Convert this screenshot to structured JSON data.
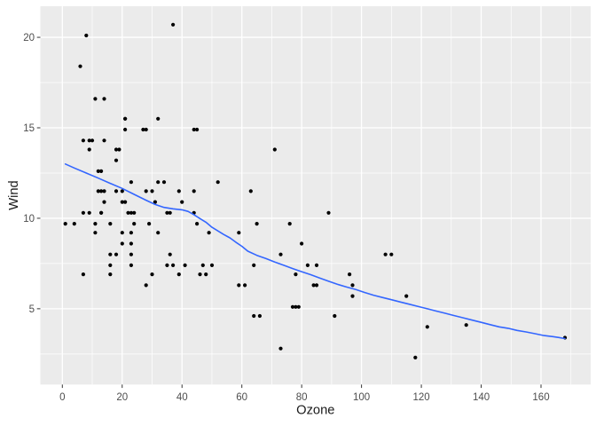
{
  "chart_data": {
    "type": "scatter",
    "title": "",
    "xlabel": "Ozone",
    "ylabel": "Wind",
    "x_ticks": [
      0,
      20,
      40,
      60,
      80,
      100,
      120,
      140,
      160
    ],
    "x_minor_ticks": [
      10,
      30,
      50,
      70,
      90,
      110,
      130,
      150,
      170
    ],
    "y_ticks": [
      5,
      10,
      15,
      20
    ],
    "y_minor_ticks": [
      2.5,
      7.5,
      12.5,
      17.5
    ],
    "xlim": [
      -7.35,
      176.6
    ],
    "ylim": [
      0.81,
      21.72
    ],
    "grid": "major+minor",
    "legend": "none",
    "points": [
      [
        41,
        7.4
      ],
      [
        36,
        8
      ],
      [
        12,
        12.6
      ],
      [
        18,
        11.5
      ],
      [
        28,
        14.9
      ],
      [
        23,
        8.6
      ],
      [
        19,
        13.8
      ],
      [
        8,
        20.1
      ],
      [
        7,
        6.9
      ],
      [
        16,
        9.7
      ],
      [
        11,
        9.2
      ],
      [
        14,
        10.9
      ],
      [
        18,
        13.2
      ],
      [
        14,
        11.5
      ],
      [
        34,
        12
      ],
      [
        6,
        18.4
      ],
      [
        30,
        11.5
      ],
      [
        11,
        9.7
      ],
      [
        1,
        9.7
      ],
      [
        11,
        16.6
      ],
      [
        4,
        9.7
      ],
      [
        32,
        12
      ],
      [
        23,
        12
      ],
      [
        45,
        14.9
      ],
      [
        115,
        5.7
      ],
      [
        37,
        7.4
      ],
      [
        29,
        9.7
      ],
      [
        71,
        13.8
      ],
      [
        39,
        11.5
      ],
      [
        23,
        8
      ],
      [
        21,
        14.9
      ],
      [
        37,
        20.7
      ],
      [
        20,
        9.2
      ],
      [
        12,
        11.5
      ],
      [
        13,
        10.3
      ],
      [
        135,
        4.1
      ],
      [
        49,
        9.2
      ],
      [
        32,
        9.2
      ],
      [
        64,
        4.6
      ],
      [
        40,
        10.9
      ],
      [
        77,
        5.1
      ],
      [
        97,
        6.3
      ],
      [
        97,
        5.7
      ],
      [
        85,
        7.4
      ],
      [
        10,
        14.3
      ],
      [
        27,
        14.9
      ],
      [
        7,
        14.3
      ],
      [
        48,
        6.9
      ],
      [
        35,
        10.3
      ],
      [
        61,
        6.3
      ],
      [
        79,
        5.1
      ],
      [
        63,
        11.5
      ],
      [
        16,
        6.9
      ],
      [
        80,
        8.6
      ],
      [
        108,
        8
      ],
      [
        20,
        8.6
      ],
      [
        52,
        12
      ],
      [
        82,
        7.4
      ],
      [
        50,
        7.4
      ],
      [
        64,
        7.4
      ],
      [
        59,
        9.2
      ],
      [
        39,
        6.9
      ],
      [
        9,
        13.8
      ],
      [
        16,
        7.4
      ],
      [
        78,
        6.9
      ],
      [
        35,
        7.4
      ],
      [
        66,
        4.6
      ],
      [
        122,
        4
      ],
      [
        89,
        10.3
      ],
      [
        110,
        8
      ],
      [
        44,
        11.5
      ],
      [
        28,
        11.5
      ],
      [
        65,
        9.7
      ],
      [
        22,
        10.3
      ],
      [
        59,
        6.3
      ],
      [
        23,
        7.4
      ],
      [
        31,
        10.9
      ],
      [
        44,
        10.3
      ],
      [
        21,
        15.5
      ],
      [
        9,
        14.3
      ],
      [
        45,
        9.7
      ],
      [
        168,
        3.4
      ],
      [
        73,
        8
      ],
      [
        76,
        9.7
      ],
      [
        118,
        2.3
      ],
      [
        84,
        6.3
      ],
      [
        85,
        6.3
      ],
      [
        96,
        6.9
      ],
      [
        78,
        5.1
      ],
      [
        73,
        2.8
      ],
      [
        91,
        4.6
      ],
      [
        47,
        7.4
      ],
      [
        32,
        15.5
      ],
      [
        20,
        10.9
      ],
      [
        23,
        10.3
      ],
      [
        21,
        10.9
      ],
      [
        24,
        9.7
      ],
      [
        44,
        14.9
      ],
      [
        21,
        15.5
      ],
      [
        28,
        6.3
      ],
      [
        9,
        10.3
      ],
      [
        13,
        11.5
      ],
      [
        46,
        6.9
      ],
      [
        18,
        13.8
      ],
      [
        13,
        10.3
      ],
      [
        24,
        10.3
      ],
      [
        16,
        8
      ],
      [
        13,
        12.6
      ],
      [
        23,
        9.2
      ],
      [
        36,
        10.3
      ],
      [
        7,
        10.3
      ],
      [
        14,
        16.6
      ],
      [
        30,
        6.9
      ],
      [
        14,
        14.3
      ],
      [
        18,
        8
      ],
      [
        20,
        11.5
      ]
    ],
    "smooth_line": [
      [
        1,
        13.0
      ],
      [
        4,
        12.78
      ],
      [
        8,
        12.5
      ],
      [
        12,
        12.22
      ],
      [
        16,
        11.93
      ],
      [
        20,
        11.65
      ],
      [
        24,
        11.32
      ],
      [
        28,
        11.0
      ],
      [
        31,
        10.76
      ],
      [
        34,
        10.6
      ],
      [
        37,
        10.52
      ],
      [
        40,
        10.47
      ],
      [
        42,
        10.38
      ],
      [
        44,
        10.2
      ],
      [
        46,
        9.98
      ],
      [
        48,
        9.78
      ],
      [
        50,
        9.5
      ],
      [
        52,
        9.3
      ],
      [
        54,
        9.1
      ],
      [
        56,
        8.92
      ],
      [
        58,
        8.68
      ],
      [
        60,
        8.45
      ],
      [
        62,
        8.18
      ],
      [
        65,
        7.95
      ],
      [
        68,
        7.78
      ],
      [
        71,
        7.58
      ],
      [
        74,
        7.4
      ],
      [
        77,
        7.22
      ],
      [
        80,
        7.05
      ],
      [
        83,
        6.88
      ],
      [
        86,
        6.7
      ],
      [
        89,
        6.52
      ],
      [
        92,
        6.35
      ],
      [
        95,
        6.2
      ],
      [
        98,
        6.07
      ],
      [
        101,
        5.9
      ],
      [
        104,
        5.75
      ],
      [
        107,
        5.62
      ],
      [
        110,
        5.5
      ],
      [
        113,
        5.37
      ],
      [
        116,
        5.25
      ],
      [
        119,
        5.12
      ],
      [
        122,
        5.0
      ],
      [
        125,
        4.87
      ],
      [
        128,
        4.75
      ],
      [
        131,
        4.62
      ],
      [
        134,
        4.5
      ],
      [
        137,
        4.37
      ],
      [
        140,
        4.25
      ],
      [
        143,
        4.12
      ],
      [
        146,
        4.0
      ],
      [
        149,
        3.92
      ],
      [
        152,
        3.8
      ],
      [
        155,
        3.72
      ],
      [
        158,
        3.62
      ],
      [
        161,
        3.52
      ],
      [
        164,
        3.46
      ],
      [
        166,
        3.41
      ],
      [
        168,
        3.35
      ]
    ],
    "colors": {
      "background": "#ffffff",
      "panel_background": "#ebebeb",
      "grid": "#ffffff",
      "point": "#000000",
      "smooth_line": "#3366ff",
      "axis_text": "#4d4d4d",
      "axis_title": "#1a1a1a",
      "tick_mark": "#333333"
    }
  }
}
